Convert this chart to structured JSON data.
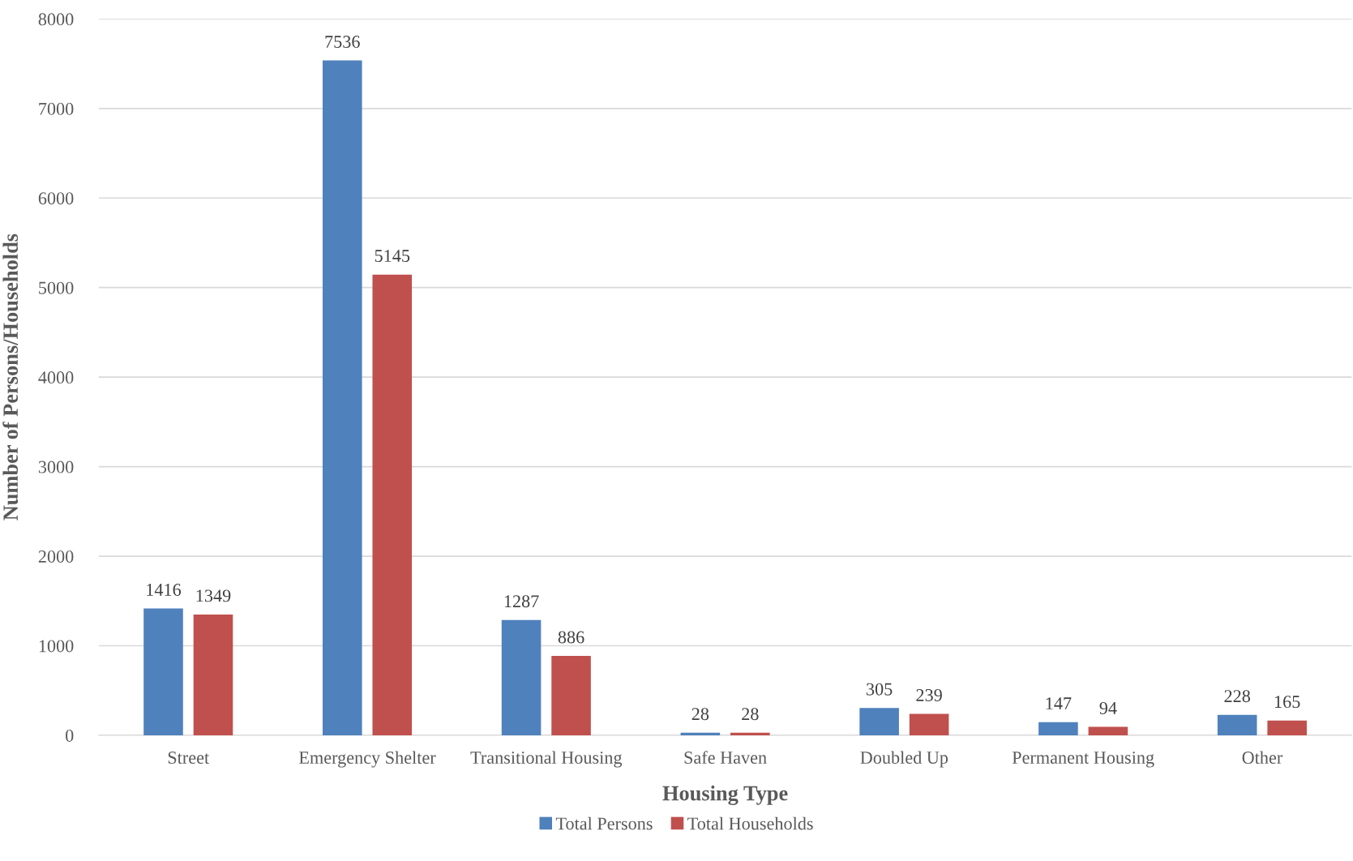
{
  "chart_data": {
    "type": "bar",
    "xlabel": "Housing Type",
    "ylabel": "Number of Persons/Households",
    "categories": [
      "Street",
      "Emergency Shelter",
      "Transitional Housing",
      "Safe Haven",
      "Doubled Up",
      "Permanent Housing",
      "Other"
    ],
    "series": [
      {
        "name": "Total Persons",
        "color": "#4f81bd",
        "values": [
          1416,
          7536,
          1287,
          28,
          305,
          147,
          228
        ]
      },
      {
        "name": "Total Households",
        "color": "#c0504d",
        "values": [
          1349,
          5145,
          886,
          28,
          239,
          94,
          165
        ]
      }
    ],
    "ylim": [
      0,
      8000
    ],
    "yticks": [
      0,
      1000,
      2000,
      3000,
      4000,
      5000,
      6000,
      7000,
      8000
    ],
    "grid": "y",
    "legend": "bottom",
    "data_labels": true
  }
}
